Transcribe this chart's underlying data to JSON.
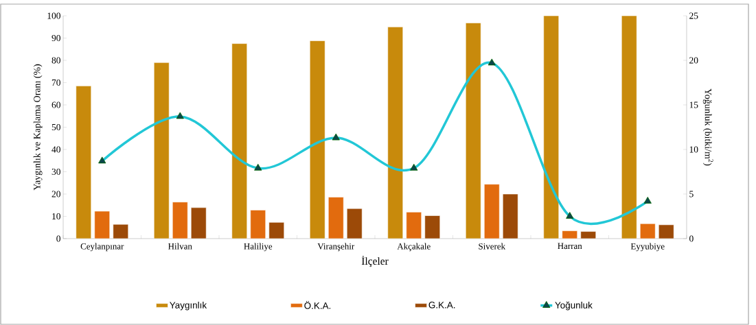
{
  "chart_data": {
    "type": "bar",
    "xlabel": "İlçeler",
    "ylabel": "Yaygınlık ve Kaplama Oranı (%)",
    "y2label": "Yoğunluk (bitki/m$^{2}$)",
    "categories": [
      "Ceylanpınar",
      "Hilvan",
      "Haliliye",
      "Viranşehir",
      "Akçakale",
      "Siverek",
      "Harran",
      "Eyyubiye"
    ],
    "series": [
      {
        "name": "Yaygınlık",
        "color": "#c88a0c",
        "values": [
          68.5,
          79,
          87.5,
          88.8,
          95,
          96.8,
          100,
          100
        ]
      },
      {
        "name": "Ö.K.A.",
        "color": "#e26b0e",
        "values": [
          12.3,
          16.4,
          12.8,
          18.6,
          11.9,
          24.4,
          3.5,
          6.7
        ]
      },
      {
        "name": "G.K.A.",
        "color": "#9c4a08",
        "values": [
          6.4,
          13.9,
          7.3,
          13.5,
          10.3,
          20,
          3.2,
          6.2
        ]
      },
      {
        "name": "Yoğunluk",
        "type": "line",
        "axis": "y2",
        "marker": "triangle",
        "color": "#22c7d6",
        "values": [
          8.7,
          13.7,
          7.9,
          11.3,
          7.9,
          19.7,
          2.5,
          4.2
        ]
      }
    ],
    "ylim": [
      0,
      100
    ],
    "yticks": [
      0,
      10,
      20,
      30,
      40,
      50,
      60,
      70,
      80,
      90,
      100
    ],
    "y2lim": [
      0,
      25
    ],
    "y2ticks": [
      0,
      5,
      10,
      15,
      20,
      25
    ],
    "grid": false,
    "legend": "bottom"
  }
}
